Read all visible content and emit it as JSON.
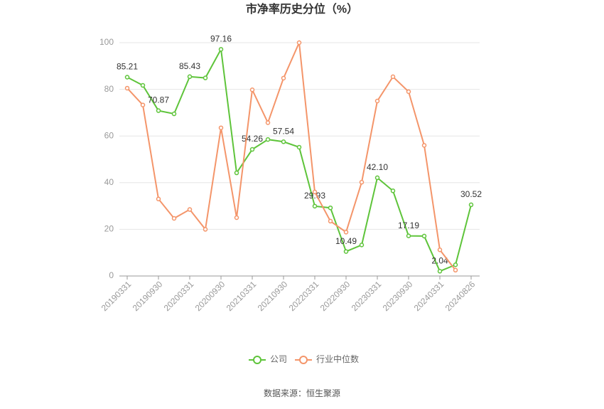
{
  "chart_data": {
    "type": "line",
    "title": "市净率历史分位（%）",
    "categories": [
      "20190331",
      null,
      "20190930",
      null,
      "20200331",
      null,
      "20200930",
      null,
      "20210331",
      null,
      "20210930",
      null,
      "20220331",
      null,
      "20220930",
      null,
      "20230331",
      null,
      "20230930",
      null,
      "20240331",
      null,
      "20240826"
    ],
    "series": [
      {
        "name": "公司",
        "color": "#5ec43a",
        "values": [
          85.21,
          81.7,
          70.87,
          69.5,
          85.43,
          84.9,
          97.16,
          44.2,
          54.26,
          58.5,
          57.54,
          55.2,
          29.93,
          29.2,
          10.49,
          13.3,
          42.1,
          36.5,
          17.19,
          17.1,
          2.04,
          4.8,
          30.52
        ],
        "value_labels": [
          "85.21",
          null,
          "70.87",
          null,
          "85.43",
          null,
          "97.16",
          null,
          "54.26",
          null,
          "57.54",
          null,
          "29.93",
          null,
          "10.49",
          null,
          "42.10",
          null,
          "17.19",
          null,
          "2.04",
          null,
          "30.52"
        ]
      },
      {
        "name": "行业中位数",
        "color": "#f4956a",
        "values": [
          80.5,
          73.3,
          33.0,
          24.7,
          28.5,
          20.0,
          63.5,
          25.0,
          79.8,
          65.7,
          84.8,
          100,
          36.0,
          23.5,
          18.8,
          40.2,
          75.0,
          85.4,
          79.0,
          56.0,
          11.2,
          2.5,
          null
        ]
      }
    ],
    "ylim": [
      0,
      100
    ],
    "yticks": [
      0,
      20,
      40,
      60,
      80,
      100
    ],
    "grid": true,
    "legend": "bottom",
    "source": "数据来源：恒生聚源"
  }
}
